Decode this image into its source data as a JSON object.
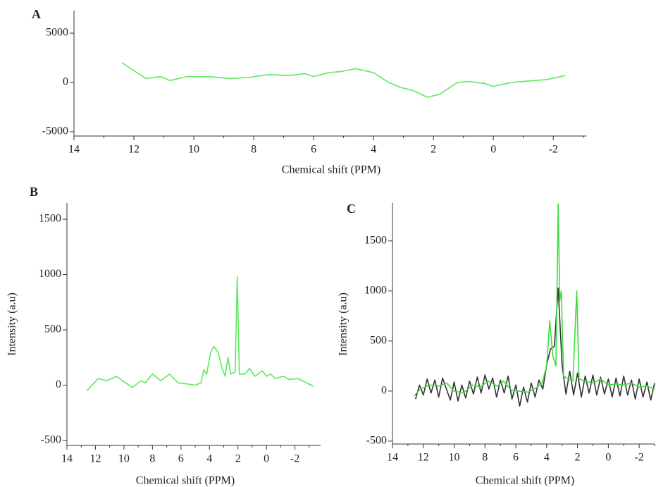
{
  "chart_data": [
    {
      "type": "line",
      "label": "A",
      "xlabel": "Chemical shift (PPM)",
      "xlim": [
        14,
        -3.1
      ],
      "xticks": [
        14,
        12,
        10,
        8,
        6,
        4,
        2,
        0,
        -2
      ],
      "ylim": [
        -5430,
        7290
      ],
      "yticks": [
        5000,
        0,
        -5000
      ],
      "series": [
        {
          "color": "#5ee85e",
          "x": [
            12.4,
            11.6,
            11.1,
            10.8,
            10.2,
            9.5,
            8.8,
            8.2,
            7.5,
            6.8,
            6.3,
            6.0,
            5.5,
            5.1,
            4.6,
            4.0,
            3.5,
            3.1,
            2.7,
            2.2,
            1.8,
            1.2,
            0.8,
            0.3,
            0.0,
            -0.6,
            -1.0,
            -1.4,
            -1.8,
            -2.4
          ],
          "values": [
            2000,
            400,
            600,
            200,
            600,
            600,
            400,
            500,
            800,
            700,
            900,
            600,
            1000,
            1100,
            1400,
            1000,
            0,
            -500,
            -800,
            -1500,
            -1200,
            0,
            100,
            -100,
            -400,
            0,
            100,
            200,
            300,
            700
          ]
        }
      ]
    },
    {
      "type": "line",
      "label": "B",
      "xlabel": "Chemical shift (PPM)",
      "ylabel": "Intensity (a.u)",
      "xlim": [
        14,
        -3.8
      ],
      "xticks": [
        14,
        12,
        10,
        8,
        6,
        4,
        2,
        0,
        -2
      ],
      "ylim": [
        -545,
        1647
      ],
      "yticks": [
        1500,
        1000,
        500,
        0,
        -500
      ],
      "series": [
        {
          "color": "#5ee85e",
          "x": [
            12.6,
            11.8,
            11.2,
            10.5,
            10.0,
            9.4,
            8.8,
            8.5,
            8.0,
            7.4,
            6.8,
            6.2,
            5.5,
            5.0,
            4.6,
            4.4,
            4.2,
            3.9,
            3.7,
            3.4,
            3.1,
            2.9,
            2.7,
            2.5,
            2.2,
            2.05,
            1.9,
            1.5,
            1.2,
            0.8,
            0.3,
            0.0,
            -0.3,
            -0.6,
            -1.2,
            -1.6,
            -2.2,
            -3.3
          ],
          "values": [
            -50,
            60,
            40,
            80,
            30,
            -20,
            40,
            20,
            100,
            40,
            100,
            20,
            10,
            0,
            20,
            140,
            100,
            300,
            350,
            300,
            150,
            80,
            250,
            100,
            120,
            980,
            100,
            100,
            150,
            80,
            130,
            80,
            100,
            60,
            80,
            50,
            60,
            -10
          ]
        }
      ]
    },
    {
      "type": "line",
      "label": "C",
      "xlabel": "Chemical shift (PPM)",
      "ylabel": "Intensity (a.u)",
      "xlim": [
        14,
        -3
      ],
      "xticks": [
        14,
        12,
        10,
        8,
        6,
        4,
        2,
        0,
        -2
      ],
      "ylim": [
        -529,
        1879
      ],
      "yticks": [
        1500,
        1000,
        500,
        0,
        -500
      ],
      "series": [
        {
          "color": "#333333",
          "x": [
            12.5,
            12.25,
            12.0,
            11.75,
            11.5,
            11.25,
            11.0,
            10.75,
            10.5,
            10.25,
            10.0,
            9.75,
            9.5,
            9.25,
            9.0,
            8.75,
            8.5,
            8.25,
            8.0,
            7.75,
            7.5,
            7.25,
            7.0,
            6.75,
            6.5,
            6.25,
            6.0,
            5.75,
            5.5,
            5.25,
            5.0,
            4.75,
            4.5,
            4.25,
            4.0,
            3.75,
            3.5,
            3.25,
            3.0,
            2.75,
            2.5,
            2.25,
            2.0,
            1.75,
            1.5,
            1.25,
            1.0,
            0.75,
            0.5,
            0.25,
            0,
            -0.25,
            -0.5,
            -0.75,
            -1.0,
            -1.25,
            -1.5,
            -1.75,
            -2.0,
            -2.25,
            -2.5,
            -2.75,
            -3.0
          ],
          "values": [
            -80,
            60,
            -40,
            120,
            -20,
            110,
            -60,
            130,
            20,
            -90,
            90,
            -100,
            60,
            -70,
            100,
            -30,
            140,
            -20,
            160,
            20,
            130,
            -60,
            110,
            -20,
            150,
            -80,
            60,
            -150,
            40,
            -110,
            80,
            -60,
            110,
            20,
            260,
            420,
            450,
            1030,
            260,
            -30,
            200,
            -40,
            180,
            -60,
            150,
            -20,
            160,
            -40,
            140,
            -30,
            120,
            -60,
            130,
            -50,
            150,
            -40,
            110,
            -80,
            120,
            -60,
            90,
            -90,
            80
          ]
        },
        {
          "color": "#3ddc3d",
          "x": [
            12.6,
            12.2,
            11.6,
            11.0,
            10.5,
            10.0,
            9.4,
            8.8,
            8.3,
            7.8,
            7.2,
            6.8,
            6.3,
            5.8,
            5.2,
            4.7,
            4.3,
            4.0,
            3.8,
            3.6,
            3.4,
            3.25,
            3.15,
            3.05,
            2.9,
            2.6,
            2.3,
            2.05,
            1.9,
            1.5,
            1.0,
            0.5,
            0,
            -0.5,
            -1.0,
            -1.5,
            -2.0,
            -2.5,
            -3.0
          ],
          "values": [
            -50,
            20,
            60,
            50,
            80,
            0,
            -20,
            60,
            40,
            100,
            50,
            100,
            10,
            0,
            -10,
            30,
            80,
            250,
            700,
            350,
            250,
            1870,
            900,
            1000,
            150,
            120,
            100,
            1000,
            120,
            100,
            80,
            120,
            60,
            70,
            60,
            80,
            40,
            50,
            20
          ]
        }
      ]
    }
  ]
}
